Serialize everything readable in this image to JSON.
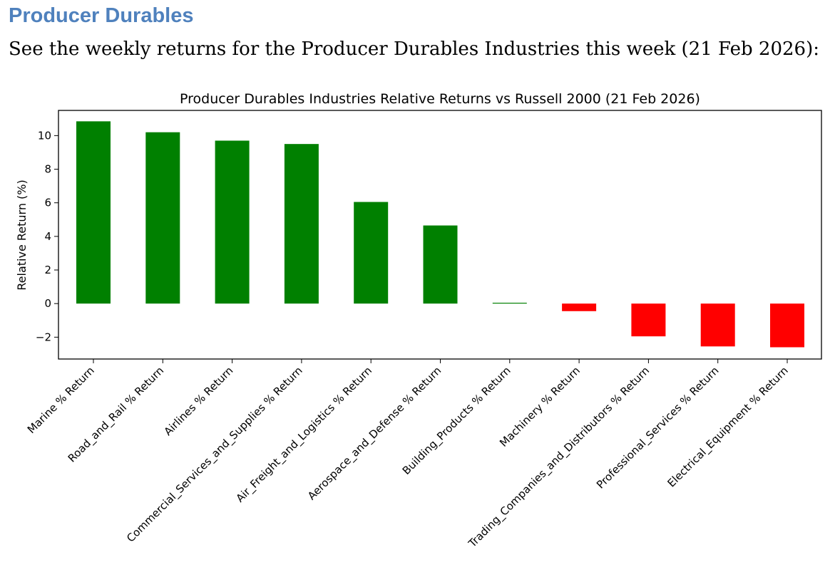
{
  "document": {
    "heading": "Producer Durables",
    "intro": "See the weekly returns for the Producer Durables Industries this week (21 Feb 2026):"
  },
  "chart_data": {
    "type": "bar",
    "title": "Producer Durables Industries Relative Returns vs Russell 2000 (21 Feb 2026)",
    "xlabel": "",
    "ylabel": "Relative Return (%)",
    "ylim": [
      -3.3,
      11.5
    ],
    "yticks": [
      -2,
      0,
      2,
      4,
      6,
      8,
      10
    ],
    "ytick_labels": [
      "−2",
      "0",
      "2",
      "4",
      "6",
      "8",
      "10"
    ],
    "grid": false,
    "legend": "none",
    "colors": {
      "positive": "#008000",
      "negative": "#ff0000"
    },
    "categories": [
      "Marine % Return",
      "Road_and_Rail % Return",
      "Airlines % Return",
      "Commercial_Services_and_Supplies % Return",
      "Air_Freight_and_Logistics % Return",
      "Aerospace_and_Defense % Return",
      "Building_Products % Return",
      "Machinery % Return",
      "Trading_Companies_and_Distributors % Return",
      "Professional_Services % Return",
      "Electrical_Equipment % Return"
    ],
    "values": [
      10.85,
      10.2,
      9.7,
      9.5,
      6.05,
      4.65,
      0.05,
      -0.45,
      -1.95,
      -2.55,
      -2.6
    ]
  }
}
